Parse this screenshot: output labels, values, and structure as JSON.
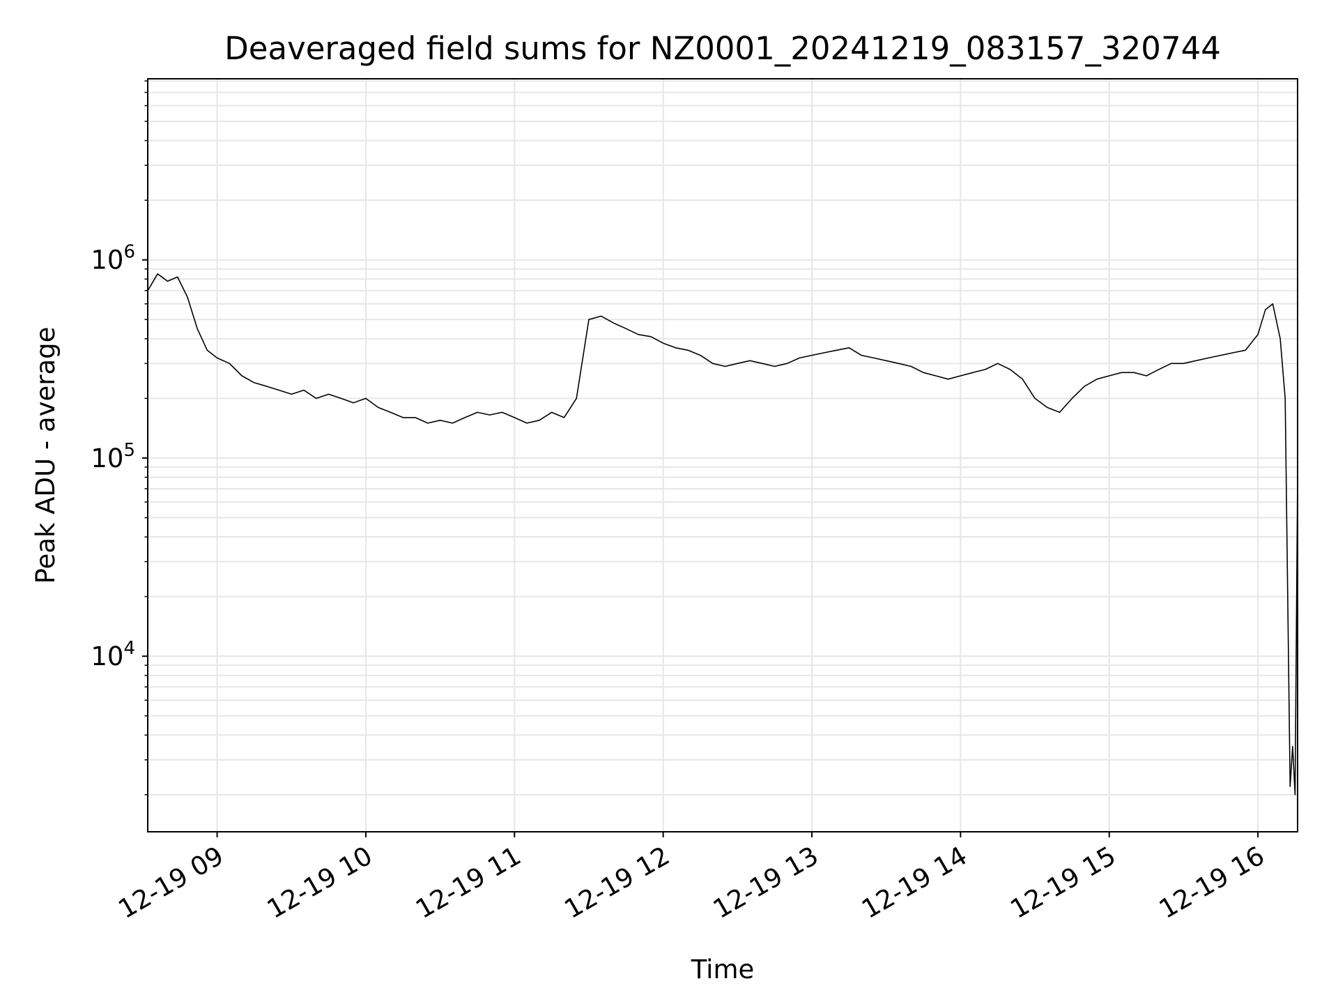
{
  "chart_data": {
    "type": "line",
    "title": "Deaveraged field sums for NZ0001_20241219_083157_320744",
    "xlabel": "Time",
    "ylabel": "Peak ADU - average",
    "yscale": "log",
    "ylim": [
      1300,
      8200000
    ],
    "xlim": [
      "12-19 08:32",
      "12-19 16:16"
    ],
    "grid": true,
    "line_color": "#000000",
    "grid_color": "#e6e6e6",
    "x_ticks": [
      "12-19 09",
      "12-19 10",
      "12-19 11",
      "12-19 12",
      "12-19 13",
      "12-19 14",
      "12-19 15",
      "12-19 16"
    ],
    "y_ticks": [
      {
        "value": 10000,
        "base": "10",
        "exp": "4"
      },
      {
        "value": 100000,
        "base": "10",
        "exp": "5"
      },
      {
        "value": 1000000,
        "base": "10",
        "exp": "6"
      }
    ],
    "series": [
      {
        "x": [
          "12-19 08:32",
          "12-19 08:36",
          "12-19 08:40",
          "12-19 08:44",
          "12-19 08:48",
          "12-19 08:52",
          "12-19 08:56",
          "12-19 09:00",
          "12-19 09:05",
          "12-19 09:10",
          "12-19 09:15",
          "12-19 09:20",
          "12-19 09:25",
          "12-19 09:30",
          "12-19 09:35",
          "12-19 09:40",
          "12-19 09:45",
          "12-19 09:50",
          "12-19 09:55",
          "12-19 10:00",
          "12-19 10:05",
          "12-19 10:10",
          "12-19 10:15",
          "12-19 10:20",
          "12-19 10:25",
          "12-19 10:30",
          "12-19 10:35",
          "12-19 10:40",
          "12-19 10:45",
          "12-19 10:50",
          "12-19 10:55",
          "12-19 11:00",
          "12-19 11:05",
          "12-19 11:10",
          "12-19 11:15",
          "12-19 11:20",
          "12-19 11:25",
          "12-19 11:30",
          "12-19 11:35",
          "12-19 11:40",
          "12-19 11:45",
          "12-19 11:50",
          "12-19 11:55",
          "12-19 12:00",
          "12-19 12:05",
          "12-19 12:10",
          "12-19 12:15",
          "12-19 12:20",
          "12-19 12:25",
          "12-19 12:30",
          "12-19 12:35",
          "12-19 12:40",
          "12-19 12:45",
          "12-19 12:50",
          "12-19 12:55",
          "12-19 13:00",
          "12-19 13:05",
          "12-19 13:10",
          "12-19 13:15",
          "12-19 13:20",
          "12-19 13:25",
          "12-19 13:30",
          "12-19 13:35",
          "12-19 13:40",
          "12-19 13:45",
          "12-19 13:50",
          "12-19 13:55",
          "12-19 14:00",
          "12-19 14:05",
          "12-19 14:10",
          "12-19 14:15",
          "12-19 14:20",
          "12-19 14:25",
          "12-19 14:30",
          "12-19 14:35",
          "12-19 14:40",
          "12-19 14:45",
          "12-19 14:50",
          "12-19 14:55",
          "12-19 15:00",
          "12-19 15:05",
          "12-19 15:10",
          "12-19 15:15",
          "12-19 15:20",
          "12-19 15:25",
          "12-19 15:30",
          "12-19 15:35",
          "12-19 15:40",
          "12-19 15:45",
          "12-19 15:50",
          "12-19 15:55",
          "12-19 16:00",
          "12-19 16:03",
          "12-19 16:06",
          "12-19 16:09",
          "12-19 16:11",
          "12-19 16:13",
          "12-19 16:14",
          "12-19 16:15",
          "12-19 16:16"
        ],
        "y": [
          700000,
          850000,
          780000,
          820000,
          650000,
          450000,
          350000,
          320000,
          300000,
          260000,
          240000,
          230000,
          220000,
          210000,
          220000,
          200000,
          210000,
          200000,
          190000,
          200000,
          180000,
          170000,
          160000,
          160000,
          150000,
          155000,
          150000,
          160000,
          170000,
          165000,
          170000,
          160000,
          150000,
          155000,
          170000,
          160000,
          200000,
          500000,
          520000,
          480000,
          450000,
          420000,
          410000,
          380000,
          360000,
          350000,
          330000,
          300000,
          290000,
          300000,
          310000,
          300000,
          290000,
          300000,
          320000,
          330000,
          340000,
          350000,
          360000,
          330000,
          320000,
          310000,
          300000,
          290000,
          270000,
          260000,
          250000,
          260000,
          270000,
          280000,
          300000,
          280000,
          250000,
          200000,
          180000,
          170000,
          200000,
          230000,
          250000,
          260000,
          270000,
          270000,
          260000,
          280000,
          300000,
          300000,
          310000,
          320000,
          330000,
          340000,
          350000,
          420000,
          560000,
          600000,
          400000,
          200000,
          2200,
          3500,
          2000,
          80000
        ]
      }
    ]
  }
}
